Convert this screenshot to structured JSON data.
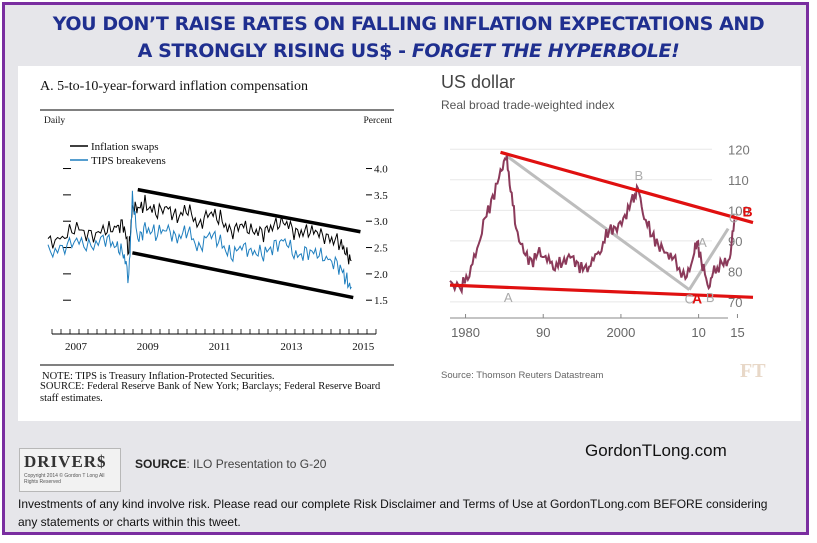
{
  "headline": {
    "line1": "YOU DON’T RAISE RATES ON FALLING INFLATION EXPECTATIONS AND",
    "line2_a": "A STRONGLY RISING US$ - ",
    "line2_b": "FORGET THE HYPERBOLE!"
  },
  "colors": {
    "frame": "#7a2ea0",
    "headline": "#1f2f8f",
    "swaps": "#000000",
    "tips": "#1f7fbf",
    "usd": "#8b3a5a",
    "trend_red": "#e01010",
    "trend_black": "#000000"
  },
  "chart_data": [
    {
      "type": "line",
      "title": "A.   5-to-10-year-forward inflation compensation",
      "frequency_label": "Daily",
      "unit_label": "Percent",
      "x_ticks": [
        "2007",
        "2009",
        "2011",
        "2013",
        "2015"
      ],
      "y_ticks": [
        "4.0",
        "3.5",
        "3.0",
        "2.5",
        "2.0",
        "1.5"
      ],
      "ylim": [
        1.2,
        4.2
      ],
      "xlim": [
        2006.5,
        2015.3
      ],
      "legend": [
        "Inflation swaps",
        "TIPS breakevens"
      ],
      "series": [
        {
          "name": "Inflation swaps",
          "x": [
            2006.5,
            2006.9,
            2007.3,
            2007.7,
            2008.1,
            2008.4,
            2008.6,
            2008.75,
            2008.85,
            2009.0,
            2009.2,
            2009.5,
            2009.8,
            2010.1,
            2010.4,
            2010.7,
            2011.0,
            2011.3,
            2011.6,
            2011.9,
            2012.2,
            2012.5,
            2012.8,
            2013.1,
            2013.4,
            2013.7,
            2014.0,
            2014.3,
            2014.6,
            2014.8,
            2014.95
          ],
          "y": [
            2.6,
            2.7,
            2.85,
            2.75,
            2.8,
            2.9,
            2.95,
            2.4,
            3.3,
            3.2,
            3.35,
            3.15,
            3.25,
            3.1,
            3.2,
            2.95,
            3.15,
            3.05,
            2.8,
            2.9,
            2.85,
            2.75,
            2.95,
            3.0,
            2.75,
            2.85,
            2.75,
            2.7,
            2.6,
            2.4,
            2.25
          ]
        },
        {
          "name": "TIPS breakevens",
          "x": [
            2006.5,
            2006.9,
            2007.3,
            2007.7,
            2008.1,
            2008.4,
            2008.6,
            2008.75,
            2008.85,
            2009.0,
            2009.2,
            2009.5,
            2009.8,
            2010.1,
            2010.4,
            2010.7,
            2011.0,
            2011.3,
            2011.6,
            2011.9,
            2012.2,
            2012.5,
            2012.8,
            2013.1,
            2013.4,
            2013.7,
            2014.0,
            2014.3,
            2014.6,
            2014.8,
            2014.95
          ],
          "y": [
            2.4,
            2.5,
            2.6,
            2.55,
            2.65,
            2.55,
            2.4,
            1.9,
            3.5,
            2.6,
            2.9,
            2.75,
            2.85,
            2.7,
            2.8,
            2.5,
            2.75,
            2.6,
            2.35,
            2.5,
            2.45,
            2.35,
            2.55,
            2.65,
            2.3,
            2.45,
            2.35,
            2.3,
            2.15,
            1.9,
            1.75
          ]
        }
      ],
      "trend_lines": [
        {
          "name": "upper",
          "from": [
            2009.0,
            3.6
          ],
          "to": [
            2015.2,
            2.8
          ]
        },
        {
          "name": "lower",
          "from": [
            2008.85,
            2.4
          ],
          "to": [
            2015.0,
            1.55
          ]
        }
      ],
      "note": "NOTE:  TIPS is Treasury Inflation-Protected Securities.",
      "source": "SOURCE:  Federal Reserve Bank of New York; Barclays; Federal Reserve Board staff estimates."
    },
    {
      "type": "line",
      "title": "US dollar",
      "subtitle": "Real broad trade-weighted index",
      "x_ticks": [
        "1980",
        "90",
        "2000",
        "10",
        "15"
      ],
      "x_tick_values": [
        1980,
        1990,
        2000,
        2010,
        2015
      ],
      "y_ticks": [
        "120",
        "110",
        "100",
        "90",
        "80",
        "70"
      ],
      "ylim": [
        68,
        125
      ],
      "xlim": [
        1978,
        2017
      ],
      "series": [
        {
          "name": "US dollar",
          "x": [
            1978,
            1979.5,
            1980.5,
            1981.5,
            1982.5,
            1983.5,
            1984.5,
            1985.2,
            1985.8,
            1986.5,
            1987.5,
            1988.5,
            1989.5,
            1990.5,
            1991.5,
            1992.5,
            1993.5,
            1994.5,
            1995.5,
            1996.5,
            1997.5,
            1998.5,
            1999.5,
            2000.5,
            2001.5,
            2002.2,
            2003,
            2004,
            2005,
            2006,
            2007,
            2008.3,
            2009.2,
            2009.8,
            2010.5,
            2011.3,
            2012,
            2013,
            2014,
            2014.6
          ],
          "y": [
            76,
            75,
            80,
            87,
            97,
            104,
            112,
            118,
            108,
            94,
            86,
            83,
            86,
            84,
            82,
            83,
            85,
            82,
            80,
            84,
            88,
            94,
            94,
            98,
            103,
            107,
            98,
            92,
            88,
            86,
            83,
            77,
            84,
            90,
            82,
            75,
            80,
            82,
            84,
            97
          ]
        }
      ],
      "point_labels": [
        {
          "text": "A",
          "x": 1985.5,
          "y": 70
        },
        {
          "text": "B",
          "x": 2002.3,
          "y": 110
        },
        {
          "text": "A",
          "x": 2010.5,
          "y": 88
        },
        {
          "text": "C",
          "x": 2008.8,
          "y": 69.5
        },
        {
          "text": "B",
          "x": 2011.5,
          "y": 70
        },
        {
          "text": "C",
          "x": 2014.5,
          "y": 96
        }
      ],
      "red_labels": [
        {
          "text": "B",
          "x": 2016.3,
          "y": 98
        },
        {
          "text": "A",
          "x": 2009.8,
          "y": 69.5
        }
      ],
      "trend_lines": [
        {
          "name": "resistance",
          "color": "red",
          "from": [
            1984.5,
            119
          ],
          "to": [
            2017,
            96
          ]
        },
        {
          "name": "support",
          "color": "red",
          "from": [
            1978,
            75.5
          ],
          "to": [
            2017,
            71.5
          ]
        },
        {
          "name": "gray1",
          "color": "gray",
          "from": [
            1985.2,
            118
          ],
          "to": [
            2008.8,
            74
          ]
        },
        {
          "name": "gray2",
          "color": "gray",
          "from": [
            2008.8,
            74
          ],
          "to": [
            2013.8,
            94
          ]
        }
      ],
      "source": "Source: Thomson Reuters Datastream",
      "watermark": "FT"
    }
  ],
  "footer": {
    "logo_text": "DRIVER$",
    "logo_subtext": "Copyright 2014 © Gordon T Long  All Rights Reserved",
    "source_label": "SOURCE",
    "source_text": ": ILO Presentation to G-20",
    "site": "GordonTLong.com",
    "disclaimer": "Investments of any kind involve risk. Please read our complete Risk Disclaimer and Terms of Use at GordonTLong.com  BEFORE considering any statements or charts within this tweet."
  }
}
